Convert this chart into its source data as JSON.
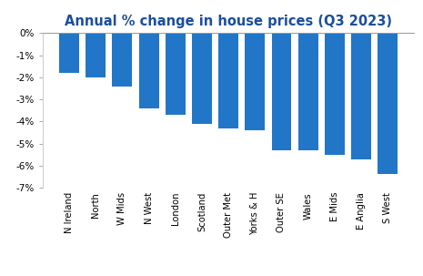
{
  "title": "Annual % change in house prices (Q3 2023)",
  "categories": [
    "N Ireland",
    "North",
    "W Mids",
    "N West",
    "London",
    "Scotland",
    "Outer Met",
    "Yorks & H",
    "Outer SE",
    "Wales",
    "E Mids",
    "E Anglia",
    "S West"
  ],
  "values": [
    -1.8,
    -2.0,
    -2.4,
    -3.4,
    -3.7,
    -4.1,
    -4.3,
    -4.4,
    -5.3,
    -5.3,
    -5.5,
    -5.7,
    -6.4
  ],
  "bar_color": "#2176c7",
  "ylim": [
    -7,
    0
  ],
  "yticks": [
    0,
    -1,
    -2,
    -3,
    -4,
    -5,
    -6,
    -7
  ],
  "background_color": "#ffffff",
  "title_color": "#1a4f9c",
  "title_fontsize": 10.5
}
